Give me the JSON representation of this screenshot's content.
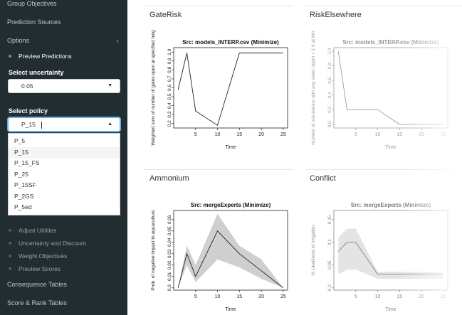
{
  "sidebar": {
    "items": {
      "group_objectives": "Group Objectives",
      "prediction_sources": "Prediction Sources",
      "options": "Options",
      "preview_predictions": "Preview Predictions",
      "adjust_utilities": "Adjust Utilities",
      "uncertainty_discount": "Uncertainty and Discount",
      "weight_objectives": "Weight Objectives",
      "preview_scores": "Preview Scores",
      "consequence_tables": "Consequence Tables",
      "score_rank_tables": "Score & Rank Tables"
    },
    "options_chevron": "‹",
    "bullet": "»",
    "uncertainty": {
      "label": "Select uncertainty",
      "value": "0.05"
    },
    "policy": {
      "label": "Select policy",
      "value": "P_15",
      "options": [
        "P_5",
        "P_15",
        "P_15_FS",
        "P_25",
        "P_15SF",
        "P_2GS",
        "P_5ed"
      ],
      "highlighted": "P_15"
    }
  },
  "panels": {
    "gaterisk": {
      "title": "GateRisk"
    },
    "riskelsewhere": {
      "title": "RiskElsewhere"
    },
    "ammonium": {
      "title": "Ammonium"
    },
    "conflict": {
      "title": "Conflict"
    }
  },
  "chart_data": [
    {
      "type": "line",
      "title": "Src: models_INTERP.csv (Minimize)",
      "xlabel": "Time",
      "ylabel": "Weighted sum of number of gates open at specified heig",
      "xlim": [
        0,
        26
      ],
      "ylim": [
        0.15,
        1.05
      ],
      "xticks": [
        5,
        10,
        15,
        20,
        25
      ],
      "yticks": [
        0.2,
        0.3,
        0.4,
        0.5,
        0.6,
        0.7,
        0.8,
        0.9,
        1.0
      ],
      "x": [
        1,
        3,
        5,
        10,
        15,
        20,
        25
      ],
      "y": [
        0.58,
        0.99,
        0.34,
        0.18,
        0.99,
        0.99,
        0.99
      ]
    },
    {
      "type": "line",
      "title": "Src: models_INTERP.csv (Minimize)",
      "xlabel": "Time",
      "ylabel": "Number of sub-basins with avg water depth > 1 ft at MH",
      "xlim": [
        0,
        26
      ],
      "ylim": [
        -0.05,
        1.05
      ],
      "xticks": [
        5,
        10,
        15,
        20,
        25
      ],
      "yticks": [
        0.0,
        0.2,
        0.4,
        0.6,
        0.8,
        1.0
      ],
      "x": [
        1,
        3,
        5,
        10,
        15,
        20,
        25
      ],
      "y": [
        1.0,
        0.2,
        0.2,
        0.2,
        0.0,
        0.0,
        0.0
      ]
    },
    {
      "type": "area",
      "title": "Src: mergeExperts (Minimize)",
      "xlabel": "Time",
      "ylabel": "Prob. of negative impact to aquaculture",
      "xlim": [
        0,
        26
      ],
      "ylim": [
        -0.002,
        0.068
      ],
      "xticks": [
        5,
        10,
        15,
        20,
        25
      ],
      "yticks": [
        0.0,
        0.01,
        0.02,
        0.03,
        0.04,
        0.05,
        0.06
      ],
      "x": [
        1,
        3,
        5,
        10,
        15,
        20,
        25
      ],
      "y": [
        0.0,
        0.03,
        0.01,
        0.05,
        0.03,
        0.015,
        0.0
      ],
      "upper": [
        0.0,
        0.037,
        0.02,
        0.065,
        0.037,
        0.025,
        0.0
      ],
      "lower": [
        0.0,
        0.02,
        0.005,
        0.025,
        0.018,
        0.008,
        0.0
      ]
    },
    {
      "type": "area",
      "title": "Src: mergeExperts (Minimize)",
      "xlabel": "Time",
      "ylabel": "% Likelihood of Irrigation",
      "xlim": [
        0,
        26
      ],
      "ylim": [
        -0.005,
        0.17
      ],
      "xticks": [
        5,
        10,
        15,
        20,
        25
      ],
      "yticks": [
        0.0,
        0.05,
        0.1,
        0.15
      ],
      "x": [
        1,
        3,
        5,
        10,
        15,
        20,
        25
      ],
      "y": [
        0.08,
        0.1,
        0.1,
        0.03,
        0.03,
        0.03,
        0.03
      ],
      "upper": [
        0.11,
        0.13,
        0.13,
        0.035,
        0.035,
        0.035,
        0.035
      ],
      "lower": [
        0.03,
        0.04,
        0.04,
        0.02,
        0.02,
        0.02,
        0.02
      ]
    }
  ]
}
